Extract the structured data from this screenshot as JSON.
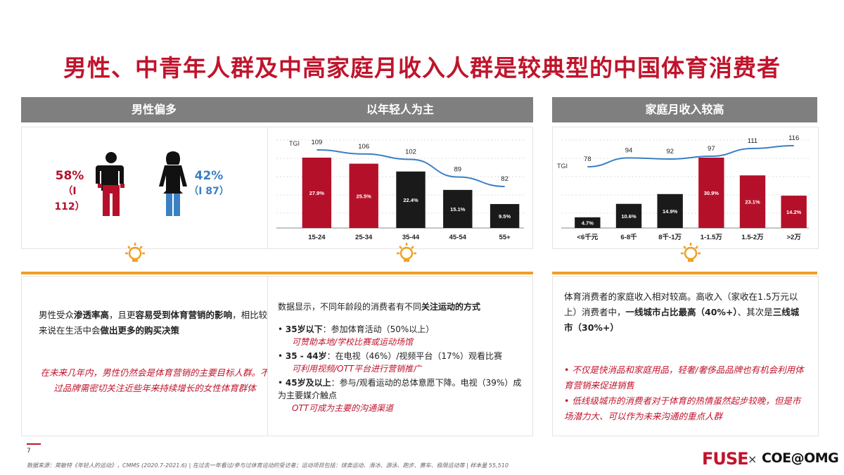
{
  "title": "男性、中青年人群及中高家庭月收入人群是较典型的中国体育消费者",
  "panels": [
    {
      "header": "男性偏多",
      "male_pct": "58%",
      "male_tgi": "（I 112）",
      "female_pct": "42%",
      "female_tgi": "（I 87）",
      "text_line1_a": "男性受众",
      "text_line1_b": "渗透率高",
      "text_line1_c": "，且更",
      "text_line1_d": "容易受到体育营销的影",
      "text_line2_a": "响",
      "text_line2_b": "，相比较来说在生活中会",
      "text_line2_c": "做出更多的购买决策",
      "italic": "在未来几年内，男性仍然会是体育营销的主要目标人群。不过品牌需密切关注近些年来持续增长的女性体育群体"
    },
    {
      "header": "以年轻人为主",
      "intro_a": "数据显示，不同年龄段的消费者有不同",
      "intro_b": "关注运动的方式",
      "bullets": [
        {
          "bold": "35岁以下",
          "text": "：参加体育活动（50%以上）",
          "italic": "可赞助本地/学校比赛或运动场馆"
        },
        {
          "bold": "35 - 44岁",
          "text": "：在电视（46%）/视频平台（17%）观看比赛",
          "italic": "可利用视频/OTT平台进行营销推广"
        },
        {
          "bold": "45岁及以上",
          "text": "：参与/观看运动的总体意愿下降。电视（39%）成为主要媒介触点",
          "italic": "OTT可成为主要的沟通渠道"
        }
      ]
    },
    {
      "header": "家庭月收入较高",
      "intro_a": "体育消费者的家庭收入相对较高。高收入（家收在1.5万元以上）消费者中，",
      "intro_b": "一线城市占比最高（40%+）",
      "intro_c": "、其次是",
      "intro_d": "三线城市（30%+）",
      "bullets": [
        "不仅是快消品和家庭用品，轻奢/奢侈品品牌也有机会利用体育营销来促进销售",
        "低线级城市的消费者对于体育的热情虽然起步较晚，但是市场潜力大、可以作为未来沟通的重点人群"
      ]
    }
  ],
  "chart_data": [
    {
      "type": "bar",
      "categories": [
        "15-24",
        "25-34",
        "35-44",
        "45-54",
        "55+"
      ],
      "values": [
        27.9,
        25.5,
        22.4,
        15.1,
        9.5
      ],
      "value_labels": [
        "27.9%",
        "25.5%",
        "22.4%",
        "15.1%",
        "9.5%"
      ],
      "bar_colors": [
        "#b5102a",
        "#b5102a",
        "#1a1a1a",
        "#1a1a1a",
        "#1a1a1a"
      ],
      "line_name": "TGI",
      "line_values": [
        109,
        106,
        102,
        89,
        82
      ],
      "line_color": "#3b7fc4"
    },
    {
      "type": "bar",
      "categories": [
        "<6千元",
        "6-8千",
        "8千-1万",
        "1-1.5万",
        "1.5-2万",
        ">2万"
      ],
      "values": [
        4.7,
        10.6,
        14.9,
        30.9,
        23.1,
        14.2
      ],
      "value_labels": [
        "4.7%",
        "10.6%",
        "14.9%",
        "30.9%",
        "23.1%",
        "14.2%"
      ],
      "bar_colors": [
        "#1a1a1a",
        "#1a1a1a",
        "#1a1a1a",
        "#b5102a",
        "#b5102a",
        "#b5102a"
      ],
      "line_name": "TGI",
      "line_values": [
        78,
        94,
        92,
        97,
        111,
        116
      ],
      "line_color": "#3b7fc4"
    }
  ],
  "footer": {
    "page": "7",
    "source": "数据来源：英敏特《年轻人的运动》，CMMS (2020.7-2021.6) | 在过去一年看过/参与过体育运动的受访者；运动项目包括：球类运动、滑冰、游泳、跑步、赛车、极限运动等 | 样本量 55,510",
    "brand1": "FUSE",
    "times": "×",
    "brand2": "COE@OMG"
  },
  "colors": {
    "brand_red": "#c0142c",
    "header_gray": "#7f7f7f",
    "accent_orange": "#f0a020",
    "male_red": "#b5102a",
    "female_blue": "#3b7fc4"
  }
}
